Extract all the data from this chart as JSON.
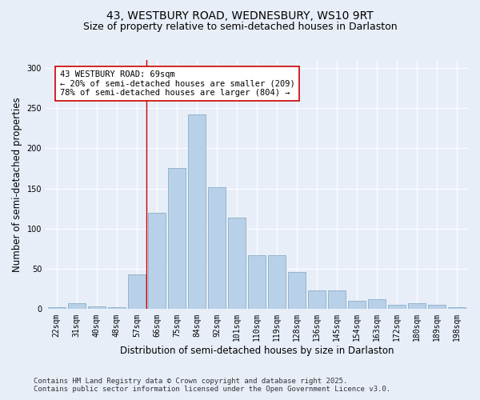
{
  "title_line1": "43, WESTBURY ROAD, WEDNESBURY, WS10 9RT",
  "title_line2": "Size of property relative to semi-detached houses in Darlaston",
  "xlabel": "Distribution of semi-detached houses by size in Darlaston",
  "ylabel": "Number of semi-detached properties",
  "categories": [
    "22sqm",
    "31sqm",
    "40sqm",
    "48sqm",
    "57sqm",
    "66sqm",
    "75sqm",
    "84sqm",
    "92sqm",
    "101sqm",
    "110sqm",
    "119sqm",
    "128sqm",
    "136sqm",
    "145sqm",
    "154sqm",
    "163sqm",
    "172sqm",
    "180sqm",
    "189sqm",
    "198sqm"
  ],
  "values": [
    2,
    7,
    3,
    2,
    43,
    120,
    176,
    242,
    152,
    114,
    67,
    67,
    46,
    23,
    23,
    10,
    12,
    5,
    7,
    5,
    2
  ],
  "bar_color": "#b8d0e8",
  "bar_edge_color": "#8aafc8",
  "highlight_color": "#cc0000",
  "annotation_text": "43 WESTBURY ROAD: 69sqm\n← 20% of semi-detached houses are smaller (209)\n78% of semi-detached houses are larger (804) →",
  "annotation_box_color": "#ffffff",
  "annotation_box_edge": "#cc0000",
  "ylim": [
    0,
    310
  ],
  "yticks": [
    0,
    50,
    100,
    150,
    200,
    250,
    300
  ],
  "footer_line1": "Contains HM Land Registry data © Crown copyright and database right 2025.",
  "footer_line2": "Contains public sector information licensed under the Open Government Licence v3.0.",
  "bg_color": "#e8eef8",
  "plot_bg_color": "#e8eef8",
  "title_fontsize": 10,
  "subtitle_fontsize": 9,
  "axis_label_fontsize": 8.5,
  "tick_fontsize": 7,
  "annotation_fontsize": 7.5,
  "footer_fontsize": 6.5
}
